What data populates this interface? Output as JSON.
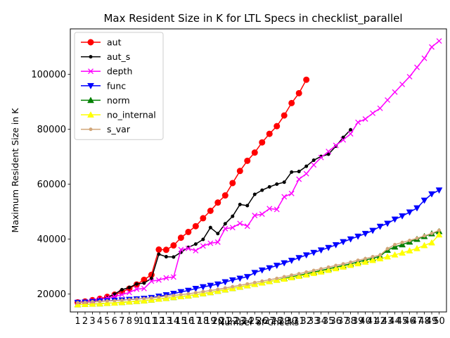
{
  "chart_data": {
    "type": "line",
    "title": "Max Resident Size in K for LTL Specs in checklist_parallel",
    "xlabel": "Number of Checks",
    "ylabel": "Maximum Resident Size in K",
    "xlim": [
      0,
      51
    ],
    "ylim": [
      13500,
      116500
    ],
    "y_ticks": [
      20000,
      40000,
      60000,
      80000,
      100000
    ],
    "y_tick_labels": [
      "20000",
      "40000",
      "60000",
      "80000",
      "100000"
    ],
    "x_ticks": [
      1,
      2,
      3,
      4,
      5,
      6,
      7,
      8,
      9,
      10,
      11,
      12,
      13,
      14,
      15,
      16,
      17,
      18,
      19,
      20,
      21,
      22,
      23,
      24,
      25,
      26,
      27,
      28,
      29,
      30,
      31,
      32,
      33,
      34,
      35,
      36,
      37,
      38,
      39,
      40,
      41,
      42,
      43,
      44,
      45,
      46,
      47,
      48,
      49,
      50
    ],
    "x_tick_labels": [
      "1",
      "2",
      "3",
      "4",
      "5",
      "6",
      "7",
      "8",
      "9",
      "10",
      "11",
      "12",
      "13",
      "14",
      "15",
      "16",
      "17",
      "18",
      "19",
      "20",
      "21",
      "22",
      "23",
      "24",
      "25",
      "26",
      "27",
      "28",
      "29",
      "30",
      "31",
      "32",
      "33",
      "34",
      "35",
      "36",
      "37",
      "38",
      "39",
      "40",
      "41",
      "42",
      "43",
      "44",
      "45",
      "46",
      "47",
      "48",
      "49",
      "50"
    ],
    "grid": false,
    "legend_position": "top-left",
    "series": [
      {
        "name": "aut",
        "color": "#ff0000",
        "marker": "circle",
        "x": [
          1,
          2,
          3,
          4,
          5,
          6,
          7,
          8,
          9,
          10,
          11,
          12,
          13,
          14,
          15,
          16,
          17,
          18,
          19,
          20,
          21,
          22,
          23,
          24,
          25,
          26,
          27,
          28,
          29,
          30,
          31,
          32,
          33
        ],
        "values": [
          17000,
          17300,
          17800,
          18300,
          19000,
          19800,
          20800,
          22000,
          23500,
          25200,
          27000,
          36200,
          36100,
          37700,
          40500,
          42600,
          44700,
          47600,
          50300,
          53300,
          55900,
          60400,
          64800,
          68500,
          71500,
          75200,
          78300,
          81100,
          85000,
          89500,
          93100,
          98000,
          null
        ]
      },
      {
        "name": "aut_s",
        "color": "#000000",
        "marker": "dot",
        "x": [
          1,
          2,
          3,
          4,
          5,
          6,
          7,
          8,
          9,
          10,
          11,
          12,
          13,
          14,
          15,
          16,
          17,
          18,
          19,
          20,
          21,
          22,
          23,
          24,
          25,
          26,
          27,
          28,
          29,
          30,
          31,
          32,
          33,
          34,
          35,
          36,
          37,
          38
        ],
        "values": [
          17000,
          17100,
          17500,
          18000,
          18700,
          20000,
          21600,
          22400,
          23700,
          24000,
          25700,
          34500,
          33600,
          33500,
          35200,
          37000,
          38200,
          39900,
          44200,
          42000,
          45600,
          48300,
          52600,
          52200,
          56300,
          57800,
          59000,
          60000,
          60700,
          64400,
          64600,
          66500,
          68700,
          70100,
          70900,
          73800,
          77000,
          79800
        ]
      },
      {
        "name": "depth",
        "color": "#ff00ff",
        "marker": "x",
        "x": [
          1,
          2,
          3,
          4,
          5,
          6,
          7,
          8,
          9,
          10,
          11,
          12,
          13,
          14,
          15,
          16,
          17,
          18,
          19,
          20,
          21,
          22,
          23,
          24,
          25,
          26,
          27,
          28,
          29,
          30,
          31,
          32,
          33,
          34,
          35,
          36,
          37,
          38,
          39,
          40,
          41,
          42,
          43,
          44,
          45,
          46,
          47,
          48,
          49,
          50
        ],
        "values": [
          17000,
          17200,
          17600,
          18100,
          18600,
          19100,
          19800,
          20600,
          21800,
          22000,
          24700,
          25100,
          25900,
          26200,
          36200,
          36600,
          35800,
          37500,
          38500,
          38900,
          43800,
          44200,
          45700,
          44700,
          48600,
          49100,
          51100,
          50800,
          55400,
          56600,
          61800,
          63800,
          67000,
          69700,
          71900,
          74100,
          76100,
          78300,
          82500,
          83700,
          85800,
          87600,
          90600,
          93500,
          96300,
          99100,
          102500,
          105800,
          109900,
          112100
        ]
      },
      {
        "name": "func",
        "color": "#0000ff",
        "marker": "triangle-down",
        "x": [
          1,
          2,
          3,
          4,
          5,
          6,
          7,
          8,
          9,
          10,
          11,
          12,
          13,
          14,
          15,
          16,
          17,
          18,
          19,
          20,
          21,
          22,
          23,
          24,
          25,
          26,
          27,
          28,
          29,
          30,
          31,
          32,
          33,
          34,
          35,
          36,
          37,
          38,
          39,
          40,
          41,
          42,
          43,
          44,
          45,
          46,
          47,
          48,
          49,
          50
        ],
        "values": [
          16900,
          17000,
          17200,
          17400,
          17500,
          17700,
          17800,
          18000,
          18200,
          18400,
          18700,
          19200,
          19700,
          20200,
          20800,
          21300,
          22000,
          22600,
          23100,
          23600,
          24400,
          25100,
          25700,
          26300,
          27800,
          28700,
          29500,
          30400,
          31300,
          32200,
          33200,
          34200,
          35100,
          36000,
          36900,
          37900,
          39000,
          40000,
          41000,
          42000,
          43100,
          44600,
          45700,
          47200,
          48400,
          49800,
          51300,
          54100,
          56400,
          57800
        ]
      },
      {
        "name": "norm",
        "color": "#008000",
        "marker": "triangle-up",
        "x": [
          1,
          2,
          3,
          4,
          5,
          6,
          7,
          8,
          9,
          10,
          11,
          12,
          13,
          14,
          15,
          16,
          17,
          18,
          19,
          20,
          21,
          22,
          23,
          24,
          25,
          26,
          27,
          28,
          29,
          30,
          31,
          32,
          33,
          34,
          35,
          36,
          37,
          38,
          39,
          40,
          41,
          42,
          43,
          44,
          45,
          46,
          47,
          48,
          49,
          50
        ],
        "values": [
          16200,
          16300,
          16400,
          16500,
          16700,
          16800,
          17000,
          17200,
          17400,
          17600,
          17900,
          18200,
          18500,
          18800,
          19100,
          19400,
          19800,
          20200,
          20600,
          21100,
          21600,
          22100,
          22600,
          23100,
          23600,
          24100,
          24600,
          25100,
          25700,
          26300,
          26800,
          27400,
          28000,
          28600,
          29200,
          29800,
          30400,
          31000,
          31700,
          32400,
          33000,
          33800,
          36000,
          37200,
          38000,
          39000,
          40000,
          41000,
          42000,
          42800
        ]
      },
      {
        "name": "no_internal",
        "color": "#ffff00",
        "marker": "triangle-up",
        "x": [
          1,
          2,
          3,
          4,
          5,
          6,
          7,
          8,
          9,
          10,
          11,
          12,
          13,
          14,
          15,
          16,
          17,
          18,
          19,
          20,
          21,
          22,
          23,
          24,
          25,
          26,
          27,
          28,
          29,
          30,
          31,
          32,
          33,
          34,
          35,
          36,
          37,
          38,
          39,
          40,
          41,
          42,
          43,
          44,
          45,
          46,
          47,
          48,
          49,
          50
        ],
        "values": [
          16200,
          16300,
          16400,
          16500,
          16700,
          16800,
          17000,
          17200,
          17400,
          17600,
          17900,
          18200,
          18500,
          18800,
          19100,
          19400,
          19800,
          20200,
          20600,
          21100,
          21600,
          22100,
          22600,
          23100,
          23600,
          24100,
          24600,
          25100,
          25500,
          26000,
          26500,
          27000,
          27600,
          28100,
          28700,
          29300,
          29900,
          30500,
          31100,
          31700,
          32300,
          32900,
          33600,
          34300,
          35000,
          35800,
          36600,
          37700,
          38700,
          41600
        ]
      },
      {
        "name": "s_var",
        "color": "#d2a679",
        "marker": "dot",
        "x": [
          1,
          2,
          3,
          4,
          5,
          6,
          7,
          8,
          9,
          10,
          11,
          12,
          13,
          14,
          15,
          16,
          17,
          18,
          19,
          20,
          21,
          22,
          23,
          24,
          25,
          26,
          27,
          28,
          29,
          30,
          31,
          32,
          33,
          34,
          35,
          36,
          37,
          38,
          39,
          40,
          41,
          42,
          43,
          44,
          45,
          46,
          47,
          48,
          49,
          50
        ],
        "values": [
          16900,
          17000,
          17200,
          17300,
          17500,
          17600,
          17800,
          18000,
          18200,
          18400,
          18600,
          18900,
          19200,
          19500,
          19800,
          20100,
          20500,
          20900,
          21300,
          21700,
          22200,
          22700,
          23200,
          23700,
          24200,
          24700,
          25200,
          25700,
          26300,
          26900,
          27400,
          28000,
          28600,
          29200,
          29800,
          30400,
          31000,
          31600,
          32300,
          32900,
          33600,
          34200,
          36500,
          38000,
          38800,
          39500,
          40300,
          41200,
          42100,
          43200
        ]
      }
    ]
  }
}
